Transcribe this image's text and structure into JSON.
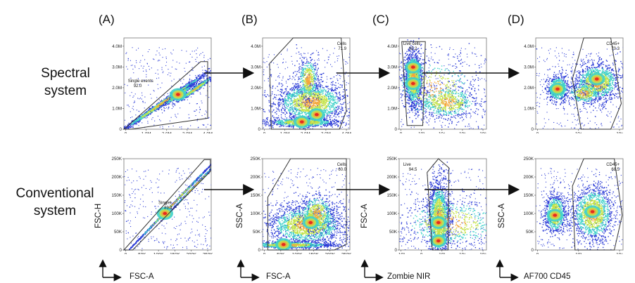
{
  "panel_letters": [
    "(A)",
    "(B)",
    "(C)",
    "(D)"
  ],
  "row_labels": {
    "spectral": [
      "Spectral",
      "system"
    ],
    "conventional": [
      "Conventional",
      "system"
    ]
  },
  "axis_titles": {
    "A": {
      "x": "FSC-A",
      "y": "FSC-H"
    },
    "B": {
      "x": "FSC-A",
      "y": "SSC-A"
    },
    "C": {
      "x": "Zombie NIR",
      "y": "FSC-A"
    },
    "D": {
      "x": "AF700 CD45",
      "y": "SSC-A"
    }
  },
  "colors": {
    "density_low": "#2b3bd6",
    "density_mid": "#3fd1c9",
    "density_midhigh": "#c4e34a",
    "density_high": "#f3a73b",
    "density_peak": "#e21d1d",
    "gate": "#333333",
    "arrow": "#111111"
  },
  "chart_data": [
    {
      "id": "A-spectral",
      "type": "scatter",
      "ticks_x": [
        "0",
        "1.0M",
        "2.0M",
        "3.0M",
        "4.0M"
      ],
      "ticks_y": [
        "0",
        "1.0M",
        "2.0M",
        "3.0M",
        "4.0M"
      ],
      "gate_label": "Single events",
      "gate_value": "92.0"
    },
    {
      "id": "B-spectral",
      "type": "scatter",
      "ticks_x": [
        "0",
        "1.0M",
        "2.0M",
        "3.0M",
        "4.0M"
      ],
      "ticks_y": [
        "0",
        "1.0M",
        "2.0M",
        "3.0M",
        "4.0M"
      ],
      "gate_label": "Cells",
      "gate_value": "71.9"
    },
    {
      "id": "C-spectral",
      "type": "scatter",
      "ticks_x": [
        "0",
        "10³",
        "10⁴",
        "10⁵",
        "10⁶"
      ],
      "ticks_y": [
        "0",
        "1.0M",
        "2.0M",
        "3.0M",
        "4.0M"
      ],
      "gate_label": "Live cells",
      "gate_value": "93.2"
    },
    {
      "id": "D-spectral",
      "type": "scatter",
      "ticks_x": [
        "0",
        "10⁴",
        "10⁵"
      ],
      "ticks_y": [
        "0",
        "1.0M",
        "2.0M",
        "3.0M",
        "4.0M"
      ],
      "gate_label": "CD45+",
      "gate_value": "70.3"
    },
    {
      "id": "A-conventional",
      "type": "scatter",
      "ticks_x": [
        "0",
        "50K",
        "100K",
        "150K",
        "200K",
        "250K"
      ],
      "ticks_y": [
        "0",
        "50K",
        "100K",
        "150K",
        "200K",
        "250K"
      ],
      "gate_label": "Singlet",
      "gate_value": "89.1"
    },
    {
      "id": "B-conventional",
      "type": "scatter",
      "ticks_x": [
        "0",
        "50K",
        "100K",
        "150K",
        "200K",
        "250K"
      ],
      "ticks_y": [
        "0",
        "50K",
        "100K",
        "150K",
        "200K",
        "250K"
      ],
      "gate_label": "Cells",
      "gate_value": "60.0"
    },
    {
      "id": "C-conventional",
      "type": "scatter",
      "ticks_x": [
        "-10³",
        "0",
        "10³",
        "10⁴",
        "10⁵"
      ],
      "ticks_y": [
        "0",
        "50K",
        "100K",
        "150K",
        "200K",
        "250K"
      ],
      "gate_label": "Live",
      "gate_value": "94.5"
    },
    {
      "id": "D-conventional",
      "type": "scatter",
      "ticks_x": [
        "0",
        "10³",
        "10⁴"
      ],
      "ticks_y": [
        "0",
        "50K",
        "100K",
        "150K",
        "200K",
        "250K"
      ],
      "gate_label": "CD45+",
      "gate_value": "68.5"
    }
  ]
}
